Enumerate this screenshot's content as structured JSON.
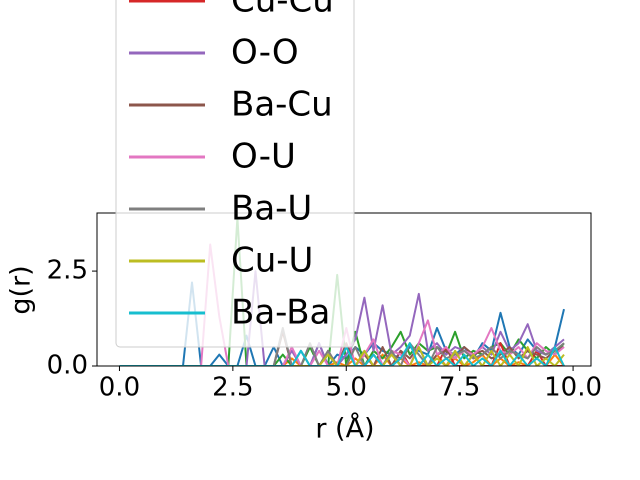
{
  "chart_data": {
    "type": "line",
    "x_label": "r (Å)",
    "y_label": "g(r)",
    "xlim": [
      -0.495,
      10.395
    ],
    "ylim": [
      0,
      4.03
    ],
    "xticks": [
      {
        "value": 0,
        "label": "0.0"
      },
      {
        "value": 2.5,
        "label": "2.5"
      },
      {
        "value": 5,
        "label": "5.0"
      },
      {
        "value": 7.5,
        "label": "7.5"
      },
      {
        "value": 10,
        "label": "10.0"
      }
    ],
    "yticks": [
      {
        "value": 0,
        "label": "0.0"
      },
      {
        "value": 2.5,
        "label": "2.5"
      }
    ],
    "legend": "upper left",
    "x": [
      0,
      0.2,
      0.4,
      0.6,
      0.8,
      1,
      1.2,
      1.4,
      1.6,
      1.8,
      2,
      2.2,
      2.4,
      2.6,
      2.8,
      3,
      3.2,
      3.4,
      3.6,
      3.8,
      4,
      4.2,
      4.4,
      4.6,
      4.8,
      5,
      5.2,
      5.4,
      5.6,
      5.8,
      6,
      6.2,
      6.4,
      6.6,
      6.8,
      7,
      7.2,
      7.4,
      7.6,
      7.8,
      8,
      8.2,
      8.4,
      8.6,
      8.8,
      9,
      9.2,
      9.4,
      9.6,
      9.8
    ],
    "series": [
      {
        "color": "#1f77b4",
        "values": [
          0,
          0,
          0,
          0,
          0,
          0,
          0,
          0,
          2.2,
          0,
          0,
          0.3,
          0,
          0,
          0.8,
          0,
          0,
          0.5,
          0,
          0,
          0.4,
          0,
          0.6,
          0,
          0.3,
          0.2,
          0.5,
          0.3,
          0.6,
          0.4,
          0.3,
          0.2,
          0.5,
          0.4,
          0.3,
          1.0,
          0.4,
          0.3,
          0.5,
          0.2,
          0.6,
          0.4,
          1.4,
          0.5,
          0.3,
          0.7,
          0.4,
          0.3,
          0.5,
          1.5
        ]
      },
      {
        "color": "#ff7f0e",
        "values": [
          0,
          0,
          0,
          0,
          0,
          0,
          0,
          0,
          0,
          0,
          0,
          0,
          0,
          0,
          0,
          0,
          0,
          0,
          0,
          0.2,
          0,
          0,
          0,
          0,
          0.1,
          0,
          0.2,
          0,
          0,
          0.3,
          0,
          0.2,
          0,
          0.1,
          0,
          0.3,
          0,
          0.2,
          0,
          0.1,
          0.3,
          0,
          0.2,
          0,
          0.1,
          0,
          0.2,
          0,
          0.3,
          0
        ]
      },
      {
        "color": "#2ca02c",
        "values": [
          0,
          0,
          0,
          0,
          0,
          0,
          0,
          0,
          0,
          0,
          0,
          0,
          0,
          3.9,
          0,
          0,
          0,
          0,
          0.3,
          0,
          0,
          0.5,
          0,
          0,
          2.4,
          0,
          0.9,
          0,
          0.4,
          0.2,
          0.5,
          0.9,
          0.3,
          0.6,
          0.4,
          0.5,
          0.3,
          0.9,
          0.2,
          0.4,
          0.3,
          0.5,
          0.6,
          0.3,
          0.7,
          0.4,
          0.2,
          0.5,
          0.3,
          0.6
        ]
      },
      {
        "name": "Cu-Cu",
        "color": "#d62728",
        "values": [
          0,
          0,
          0,
          0,
          0,
          0,
          0,
          0,
          0,
          0,
          0,
          0,
          0,
          0,
          0,
          0,
          0,
          0,
          0,
          0,
          0,
          0,
          0,
          0,
          0,
          0,
          0,
          0,
          0.3,
          0,
          0,
          0.4,
          0,
          0,
          0,
          0,
          0.5,
          0,
          0,
          0.3,
          0,
          0,
          0.6,
          0,
          0,
          0,
          0.4,
          0,
          0,
          0
        ]
      },
      {
        "name": "O-O",
        "color": "#9467bd",
        "values": [
          0,
          0,
          0,
          0,
          0,
          0,
          0,
          0,
          0,
          0,
          0,
          0,
          0,
          0,
          0,
          2.5,
          0,
          0,
          0,
          0.4,
          0,
          0,
          0.6,
          0,
          0,
          0.3,
          0.7,
          1.8,
          0.4,
          1.6,
          0.3,
          0.5,
          0.8,
          1.9,
          0.4,
          0.6,
          0.3,
          0.5,
          0.4,
          0.3,
          0.5,
          0.3,
          0.9,
          0.4,
          0.6,
          1.1,
          0.4,
          0.3,
          0.5,
          0.7
        ]
      },
      {
        "name": "Ba-Cu",
        "color": "#8c564b",
        "values": [
          0,
          0,
          0,
          0,
          0,
          0,
          0,
          0,
          0,
          0,
          0,
          0,
          0,
          0,
          0,
          0,
          0,
          0,
          0.9,
          0,
          0,
          0,
          0,
          0.4,
          0,
          0.6,
          0,
          0.3,
          0,
          0.5,
          0,
          0.4,
          0.2,
          0.5,
          0,
          0.3,
          0.4,
          0.2,
          0.5,
          0.3,
          0.4,
          0.2,
          0.3,
          0.5,
          0.2,
          0.4,
          0.3,
          0.2,
          0.4,
          0.5
        ]
      },
      {
        "name": "O-U",
        "color": "#e377c2",
        "values": [
          0,
          0,
          0,
          0,
          0,
          0,
          0,
          0,
          0,
          0,
          3.2,
          1.3,
          0,
          0,
          0,
          0,
          0,
          0,
          0,
          0.5,
          0,
          0,
          0.4,
          0,
          0,
          1.0,
          0,
          0.3,
          0.7,
          0,
          0.4,
          0.3,
          0,
          0.6,
          1.2,
          0.3,
          0.5,
          0.2,
          0.4,
          0.3,
          0.5,
          1.0,
          0.4,
          0.3,
          0.5,
          0.2,
          0.6,
          0.4,
          0.3,
          0.5
        ]
      },
      {
        "name": "Ba-U",
        "color": "#7f7f7f",
        "values": [
          0,
          0,
          0,
          0,
          0,
          0,
          0,
          0,
          0,
          0,
          0,
          0,
          0,
          0,
          0,
          0,
          0,
          0,
          1.0,
          0,
          0,
          0.6,
          0,
          0.4,
          0,
          0,
          0.5,
          0,
          0.3,
          0,
          0.4,
          0,
          0.6,
          0.3,
          0,
          0.5,
          0.2,
          0.3,
          0.4,
          0.2,
          0.3,
          0.5,
          0.2,
          0.4,
          0.3,
          0.2,
          0.5,
          0.3,
          0.4,
          0.6
        ]
      },
      {
        "name": "Cu-U",
        "color": "#bcbd22",
        "values": [
          0,
          0,
          0,
          0,
          0,
          0,
          0,
          0,
          0,
          0,
          0,
          0,
          0,
          0,
          0,
          0,
          0,
          0,
          0,
          0,
          0,
          0,
          0,
          0.3,
          0,
          0,
          0,
          0.4,
          0,
          0,
          0.3,
          0,
          0,
          0.5,
          0,
          0.2,
          0,
          0.4,
          0,
          0.3,
          0,
          0.4,
          0,
          0.3,
          0,
          0.5,
          0,
          0.2,
          0,
          0.3
        ]
      },
      {
        "name": "Ba-Ba",
        "color": "#17becf",
        "values": [
          0,
          0,
          0,
          0,
          0,
          0,
          0,
          0,
          0,
          0,
          0,
          0,
          0,
          0,
          0,
          0,
          0,
          0,
          0,
          0,
          0.4,
          0,
          0,
          0,
          0,
          0.5,
          0,
          0,
          0.3,
          0,
          0,
          0.2,
          0.6,
          0,
          0.3,
          0,
          0.2,
          0,
          0.3,
          0,
          0.2,
          0,
          0.4,
          0,
          0.3,
          0,
          0.2,
          0,
          0.5,
          0
        ]
      }
    ]
  }
}
